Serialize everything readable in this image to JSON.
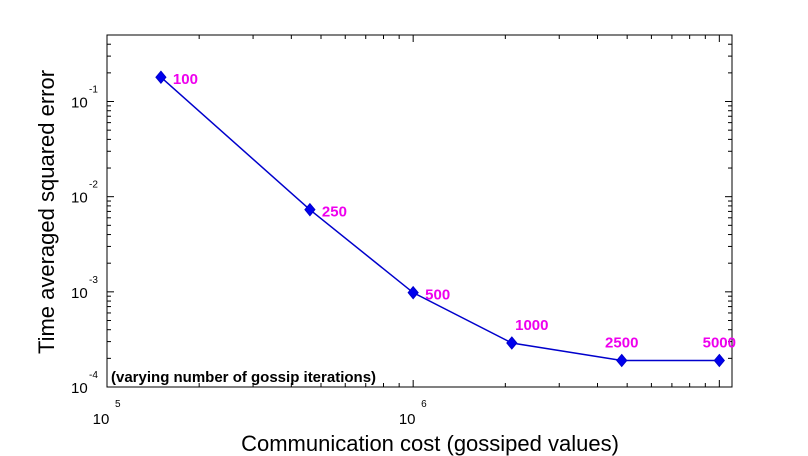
{
  "chart_data": {
    "type": "line",
    "xlabel": "Communication cost (gossiped values)",
    "ylabel": "Time averaged squared error",
    "xscale": "log",
    "yscale": "log",
    "xlim": [
      100000,
      11000000
    ],
    "ylim": [
      0.0001,
      0.5
    ],
    "x_ticks": [
      {
        "base": "10",
        "exp": "5",
        "value": 100000
      },
      {
        "base": "10",
        "exp": "6",
        "value": 1000000
      }
    ],
    "y_ticks": [
      {
        "base": "10",
        "exp": "-4",
        "value": 0.0001
      },
      {
        "base": "10",
        "exp": "-3",
        "value": 0.001
      },
      {
        "base": "10",
        "exp": "-2",
        "value": 0.01
      },
      {
        "base": "10",
        "exp": "-1",
        "value": 0.1
      }
    ],
    "grid": false,
    "annotation": "(varying number of gossip iterations)",
    "series": [
      {
        "points": [
          {
            "x": 150000,
            "y": 0.18,
            "label": "100"
          },
          {
            "x": 460000,
            "y": 0.0073,
            "label": "250"
          },
          {
            "x": 1000000,
            "y": 0.00098,
            "label": "500"
          },
          {
            "x": 2100000,
            "y": 0.00029,
            "label": "1000"
          },
          {
            "x": 4800000,
            "y": 0.00019,
            "label": "2500"
          },
          {
            "x": 10000000,
            "y": 0.00019,
            "label": "5000"
          }
        ]
      }
    ],
    "colors": {
      "line": "#0000cc",
      "marker": "#0000ee",
      "label": "#ee00ee",
      "axis": "#000000"
    }
  }
}
